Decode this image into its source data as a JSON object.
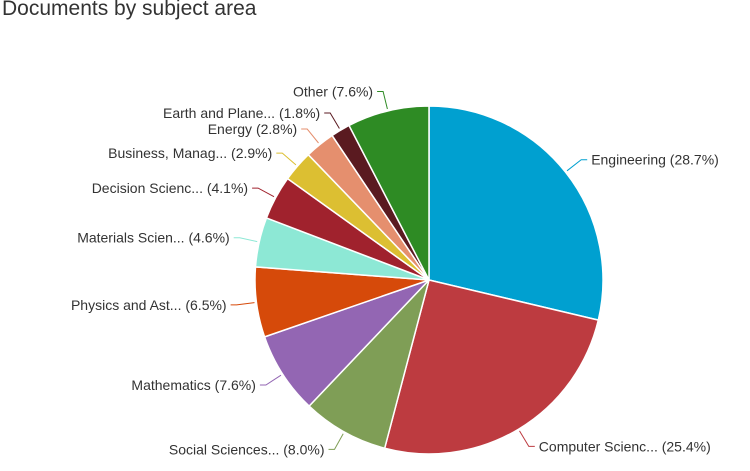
{
  "chart_data": {
    "type": "pie",
    "title": "Documents by subject area",
    "slices": [
      {
        "label": "Engineering (28.7%)",
        "value": 28.7,
        "color": "#00a0d0"
      },
      {
        "label": "Computer Scienc... (25.4%)",
        "value": 25.4,
        "color": "#bd3b40"
      },
      {
        "label": "Social Sciences... (8.0%)",
        "value": 8.0,
        "color": "#7f9e56"
      },
      {
        "label": "Mathematics (7.6%)",
        "value": 7.6,
        "color": "#9366b3"
      },
      {
        "label": "Physics and Ast... (6.5%)",
        "value": 6.5,
        "color": "#d64a0a"
      },
      {
        "label": "Materials Scien... (4.6%)",
        "value": 4.6,
        "color": "#8de8d5"
      },
      {
        "label": "Decision Scienc... (4.1%)",
        "value": 4.1,
        "color": "#a0222d"
      },
      {
        "label": "Business, Manag... (2.9%)",
        "value": 2.9,
        "color": "#dcbf32"
      },
      {
        "label": "Energy (2.8%)",
        "value": 2.8,
        "color": "#e58f6e"
      },
      {
        "label": "Earth and Plane... (1.8%)",
        "value": 1.8,
        "color": "#5a1a20"
      },
      {
        "label": "Other (7.6%)",
        "value": 7.6,
        "color": "#2e8b24"
      }
    ]
  }
}
